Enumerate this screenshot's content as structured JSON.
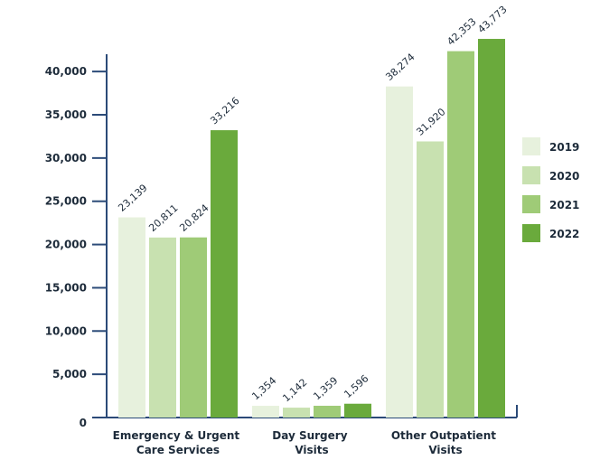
{
  "chart_data": {
    "type": "bar",
    "categories": [
      "Emergency & Urgent\nCare Services",
      "Day Surgery\nVisits",
      "Other Outpatient\nVisits"
    ],
    "series": [
      {
        "name": "2019",
        "color": "#e7f1dd",
        "values": [
          23139,
          1354,
          38274
        ],
        "value_labels": [
          "23,139",
          "1,354",
          "38,274"
        ]
      },
      {
        "name": "2020",
        "color": "#c8e1b0",
        "values": [
          20811,
          1142,
          31920
        ],
        "value_labels": [
          "20,811",
          "1,142",
          "31,920"
        ]
      },
      {
        "name": "2021",
        "color": "#9fcb77",
        "values": [
          20824,
          1359,
          42353
        ],
        "value_labels": [
          "20,824",
          "1,359",
          "42,353"
        ]
      },
      {
        "name": "2022",
        "color": "#6aaa3c",
        "values": [
          33216,
          1596,
          43773
        ],
        "value_labels": [
          "33,216",
          "1,596",
          "43,773"
        ]
      }
    ],
    "ylim": [
      0,
      42000
    ],
    "yticks": [
      0,
      {
        "value": 5000,
        "label": "5,000"
      },
      {
        "value": 10000,
        "label": "10,000"
      },
      {
        "value": 15000,
        "label": "15,000"
      },
      {
        "value": 20000,
        "label": "20,000"
      },
      {
        "value": 25000,
        "label": "25,000"
      },
      {
        "value": 30000,
        "label": "30,000"
      },
      {
        "value": 35000,
        "label": "35,000"
      },
      {
        "value": 40000,
        "label": "40,000"
      }
    ],
    "legend": "right"
  }
}
